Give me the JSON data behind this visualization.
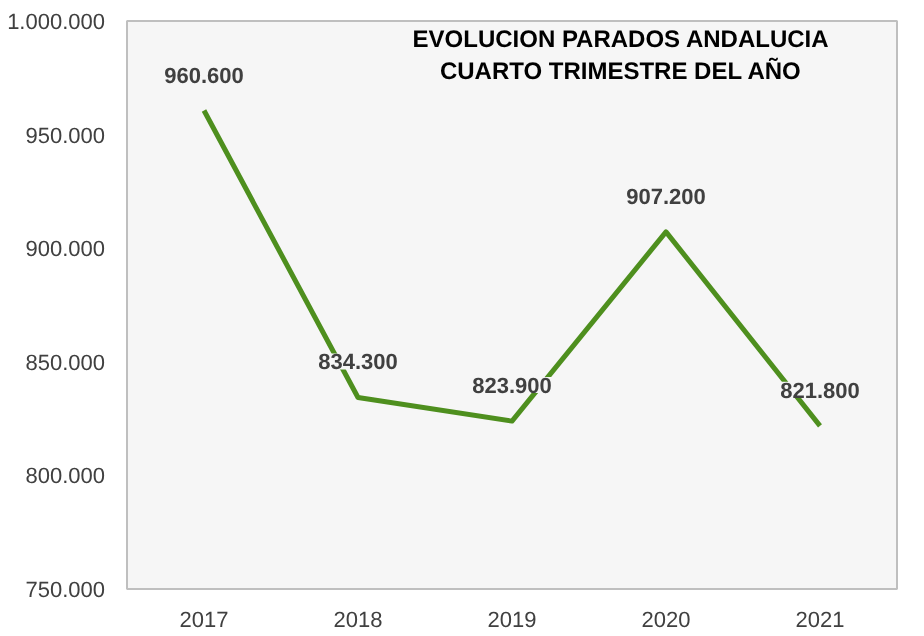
{
  "chart_data": {
    "type": "line",
    "title": "EVOLUCION PARADOS ANDALUCIA\nCUARTO TRIMESTRE DEL AÑO",
    "categories": [
      "2017",
      "2018",
      "2019",
      "2020",
      "2021"
    ],
    "series": [
      {
        "color": "#4e8f1e",
        "values": [
          960600,
          834300,
          823900,
          907200,
          821800
        ],
        "value_labels": [
          "960.600",
          "834.300",
          "823.900",
          "907.200",
          "821.800"
        ]
      }
    ],
    "ylim": [
      750000,
      1000000
    ],
    "yticks": [
      {
        "value": 750000,
        "label": "750.000"
      },
      {
        "value": 800000,
        "label": "800.000"
      },
      {
        "value": 850000,
        "label": "850.000"
      },
      {
        "value": 900000,
        "label": "900.000"
      },
      {
        "value": 950000,
        "label": "950.000"
      },
      {
        "value": 1000000,
        "label": "1.000.000"
      }
    ],
    "grid": false,
    "marker": "none",
    "line_style": "solid"
  }
}
